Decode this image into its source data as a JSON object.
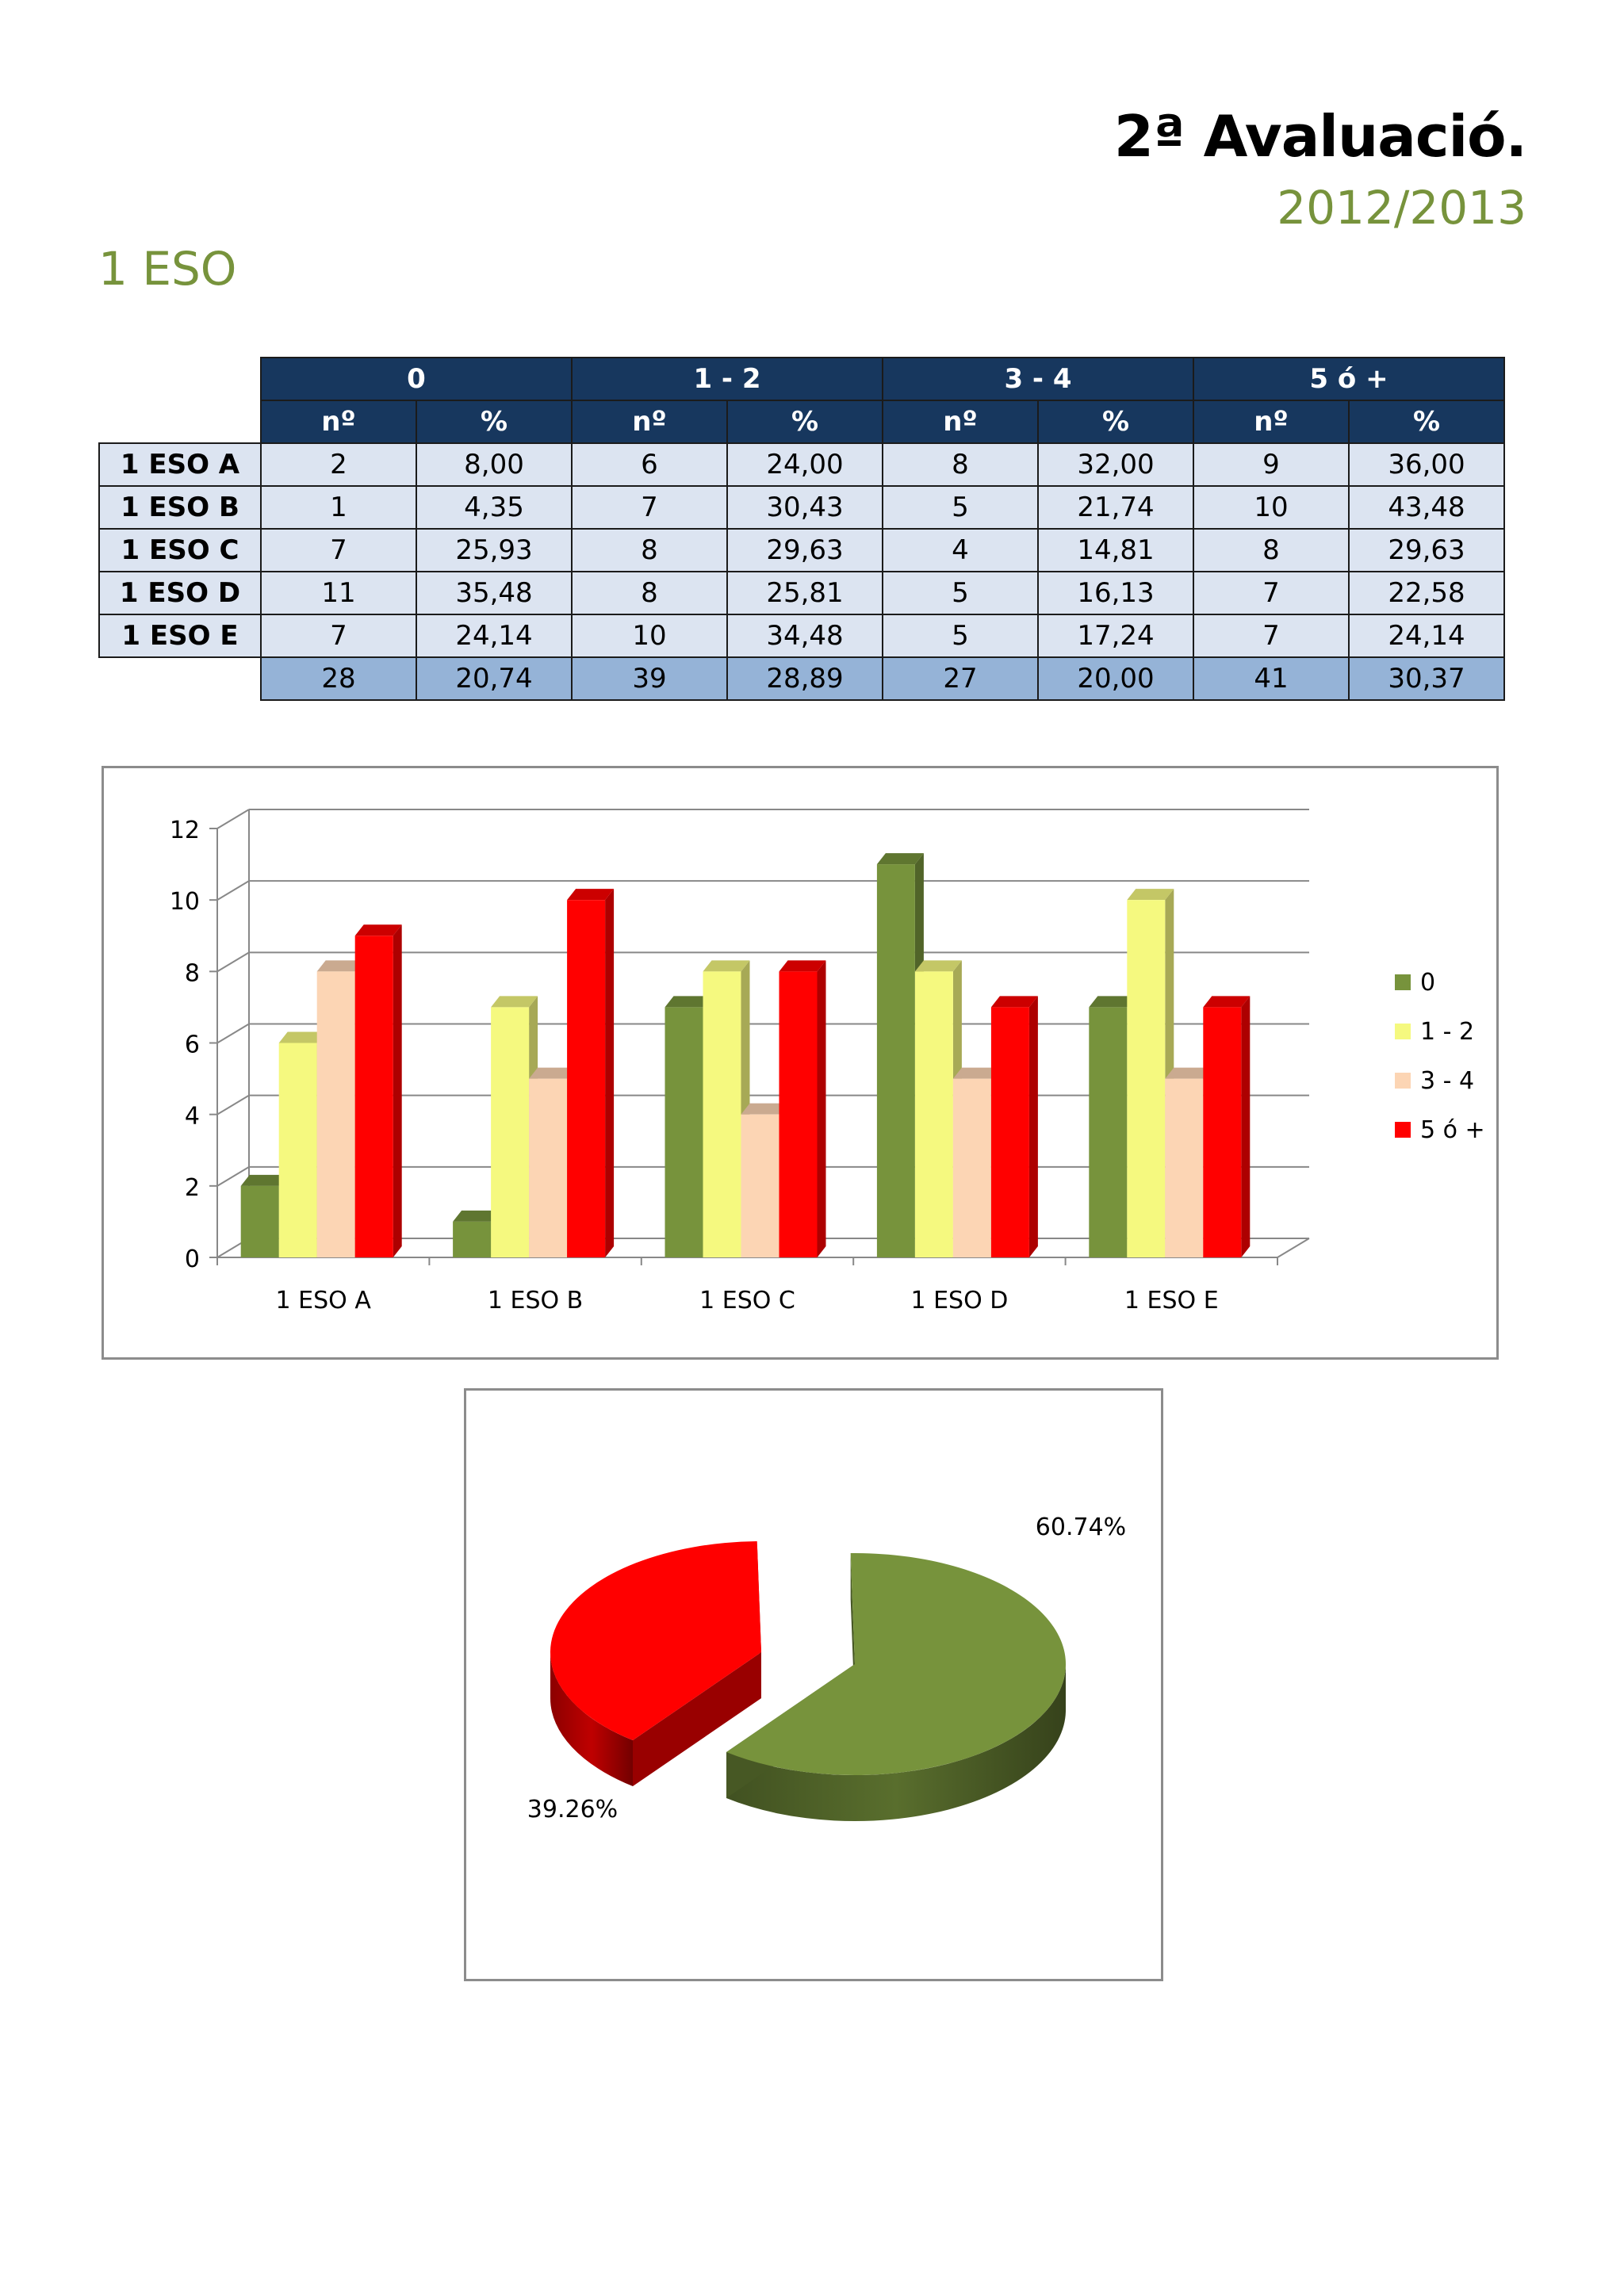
{
  "header": {
    "title": "2ª Avaluació.",
    "year": "2012/2013",
    "section": "1 ESO"
  },
  "table": {
    "groups": [
      "0",
      "1 - 2",
      "3 - 4",
      "5 ó +"
    ],
    "subheaders": [
      "nº",
      "%"
    ],
    "rows": [
      {
        "label": "1 ESO A",
        "values": [
          "2",
          "8,00",
          "6",
          "24,00",
          "8",
          "32,00",
          "9",
          "36,00"
        ]
      },
      {
        "label": "1 ESO B",
        "values": [
          "1",
          "4,35",
          "7",
          "30,43",
          "5",
          "21,74",
          "10",
          "43,48"
        ]
      },
      {
        "label": "1 ESO C",
        "values": [
          "7",
          "25,93",
          "8",
          "29,63",
          "4",
          "14,81",
          "8",
          "29,63"
        ]
      },
      {
        "label": "1 ESO D",
        "values": [
          "11",
          "35,48",
          "8",
          "25,81",
          "5",
          "16,13",
          "7",
          "22,58"
        ]
      },
      {
        "label": "1 ESO E",
        "values": [
          "7",
          "24,14",
          "10",
          "34,48",
          "5",
          "17,24",
          "7",
          "24,14"
        ]
      }
    ],
    "totals": [
      "28",
      "20,74",
      "39",
      "28,89",
      "27",
      "20,00",
      "41",
      "30,37"
    ]
  },
  "chart_data": [
    {
      "type": "bar",
      "title": "",
      "xlabel": "",
      "ylabel": "",
      "categories": [
        "1 ESO A",
        "1 ESO B",
        "1 ESO C",
        "1 ESO D",
        "1 ESO E"
      ],
      "series": [
        {
          "name": "0",
          "values": [
            2,
            1,
            7,
            11,
            7
          ],
          "color": "#77933c"
        },
        {
          "name": "1 - 2",
          "values": [
            6,
            7,
            8,
            8,
            10
          ],
          "color": "#f5f97f"
        },
        {
          "name": "3 - 4",
          "values": [
            8,
            5,
            4,
            5,
            5
          ],
          "color": "#fcd5b4"
        },
        {
          "name": "5 ó +",
          "values": [
            9,
            10,
            8,
            7,
            7
          ],
          "color": "#ff0000"
        }
      ],
      "ylim": [
        0,
        12
      ],
      "yticks": [
        "0",
        "2",
        "4",
        "6",
        "8",
        "10",
        "12"
      ],
      "grid": true,
      "legend": "right"
    },
    {
      "type": "pie",
      "title": "",
      "slices": [
        {
          "value": 60.74,
          "label": "60.74%",
          "color": "#77933c"
        },
        {
          "value": 39.26,
          "label": "39.26%",
          "color": "#ff0000"
        }
      ]
    }
  ]
}
